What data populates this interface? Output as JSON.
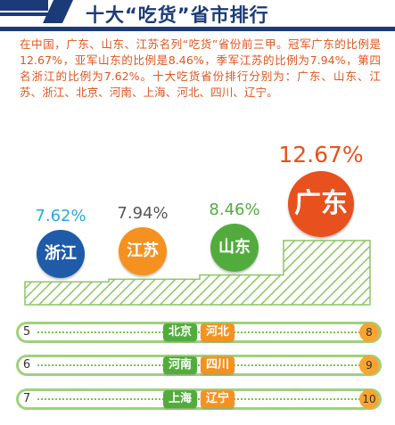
{
  "header": {
    "title": "十大“吃货”省市排行",
    "accent": "#1b3b78"
  },
  "intro": "在中国，广东、山东、江苏名列“吃货”省份前三甲。冠军广东的比例是12.67%，亚军山东的比例是8.46%，季军江苏的比例为7.94%，第四名浙江的比例为7.62%。十大吃货省份排行分别为：广东、山东、江苏、浙江、北京、河南、上海、河北、四川、辽宁。",
  "chart_data": {
    "type": "bar",
    "categories": [
      "浙江",
      "江苏",
      "山东",
      "广东"
    ],
    "values": [
      7.62,
      7.94,
      8.46,
      12.67
    ],
    "labels": [
      "7.62%",
      "7.94%",
      "8.46%",
      "12.67%"
    ],
    "colors": [
      "#1f5ba8",
      "#f5921f",
      "#52ac3d",
      "#e8511d"
    ],
    "title": "十大“吃货”省市排行",
    "xlabel": "",
    "ylabel": "",
    "unit": "%"
  },
  "ranking": [
    {
      "left_rank": "5",
      "left_name": "北京",
      "right_name": "河北",
      "right_rank": "8"
    },
    {
      "left_rank": "6",
      "left_name": "河南",
      "right_name": "四川",
      "right_rank": "9"
    },
    {
      "left_rank": "7",
      "left_name": "上海",
      "right_name": "辽宁",
      "right_rank": "10"
    }
  ]
}
